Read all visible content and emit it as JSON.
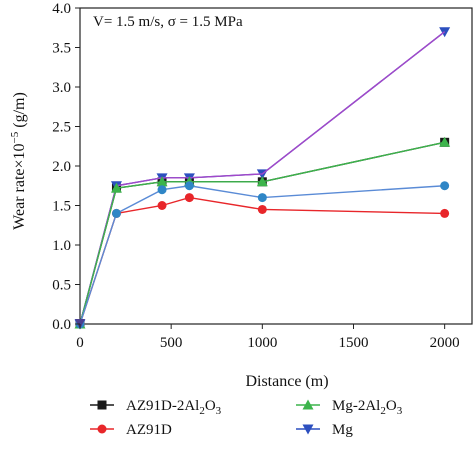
{
  "chart_data": {
    "type": "line",
    "title": "",
    "annotation": "V= 1.5 m/s, σ = 1.5 MPa",
    "xlabel": "Distance (m)",
    "ylabel": {
      "main": "Wear rate×10",
      "exp": "−5",
      "unit": " (g/m)"
    },
    "xlim": [
      0,
      2150
    ],
    "ylim": [
      0,
      4.0
    ],
    "xticks": [
      0,
      500,
      1000,
      1500,
      2000
    ],
    "yticks": [
      0.0,
      0.5,
      1.0,
      1.5,
      2.0,
      2.5,
      3.0,
      3.5,
      4.0
    ],
    "x": [
      0,
      200,
      450,
      600,
      1000,
      2000
    ],
    "series": [
      {
        "name": "AZ91D-2Al2O3",
        "legend": {
          "base": "AZ91D-2Al",
          "s1": "2",
          "mid": "O",
          "s2": "3"
        },
        "marker": "square",
        "color": "#1a1a1a",
        "values": [
          0.0,
          1.72,
          1.8,
          1.8,
          1.8,
          2.3
        ]
      },
      {
        "name": "AZ91D",
        "legend": {
          "base": "AZ91D",
          "s1": "",
          "mid": "",
          "s2": ""
        },
        "marker": "circle",
        "color": "#e8262a",
        "values": [
          0.0,
          1.4,
          1.5,
          1.6,
          1.45,
          1.4
        ]
      },
      {
        "name": "Mg-2Al2O3",
        "legend": {
          "base": "Mg-2Al",
          "s1": "2",
          "mid": "O",
          "s2": "3"
        },
        "marker": "triangle-up",
        "color": "#3cb44b",
        "values": [
          0.0,
          1.72,
          1.8,
          1.8,
          1.8,
          2.3
        ]
      },
      {
        "name": "Mg",
        "legend": {
          "base": "Mg",
          "s1": "",
          "mid": "",
          "s2": ""
        },
        "marker": "triangle-down",
        "color": "#2c4fbf",
        "values": [
          0.0,
          1.75,
          1.85,
          1.85,
          1.9,
          3.7
        ]
      },
      {
        "name": "",
        "legend": null,
        "marker": "circle",
        "color": "#2f86c6",
        "line_color": "#5a8bd6",
        "values": [
          0.0,
          1.4,
          1.7,
          1.75,
          1.6,
          1.75
        ]
      },
      {
        "name": "",
        "legend": null,
        "marker": "none",
        "color": "#a347c9",
        "values": [
          0.0,
          1.75,
          1.85,
          1.85,
          1.9,
          3.7
        ]
      }
    ],
    "grid": false,
    "legend_position": "bottom"
  }
}
